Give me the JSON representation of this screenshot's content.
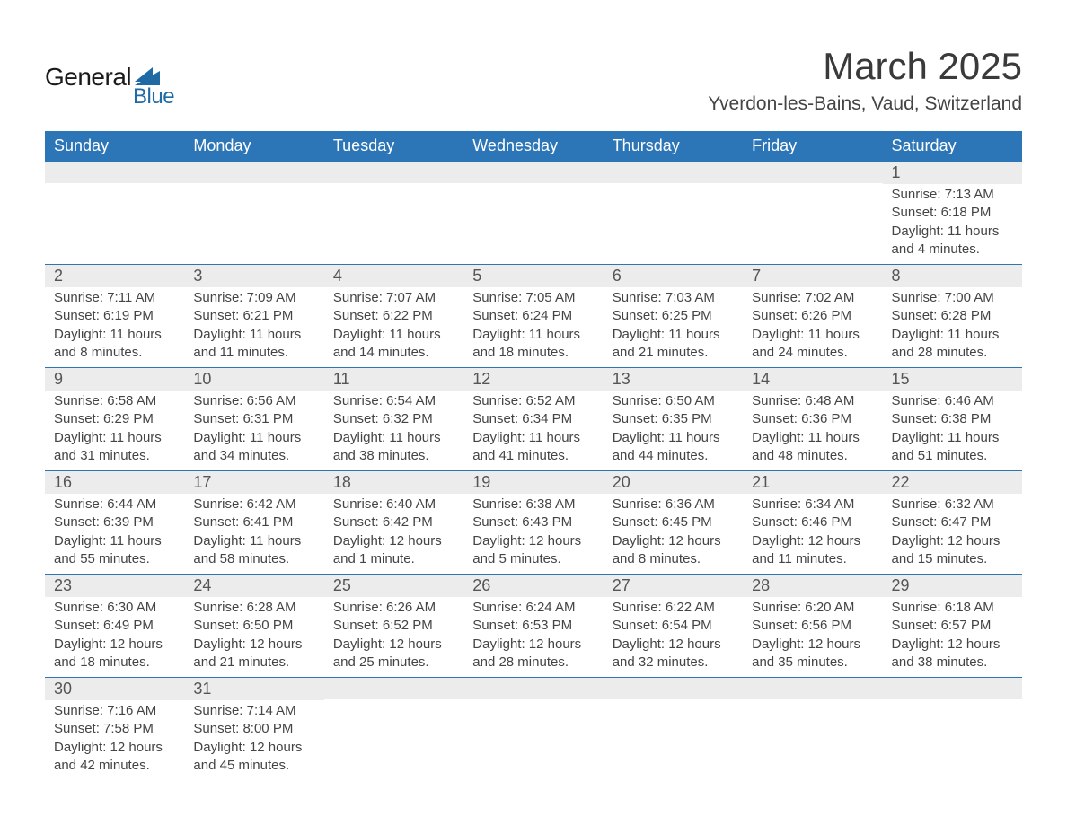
{
  "brand": {
    "name_main": "General",
    "name_sub": "Blue",
    "icon_color": "#1f6aa5"
  },
  "title": "March 2025",
  "location": "Yverdon-les-Bains, Vaud, Switzerland",
  "colors": {
    "header_bg": "#2c76b8",
    "header_text": "#ffffff",
    "daynum_bg": "#ececec",
    "body_text": "#444444",
    "row_border": "#2c76b8"
  },
  "typography": {
    "title_fontsize": 42,
    "location_fontsize": 21,
    "header_fontsize": 18,
    "daynum_fontsize": 18,
    "data_fontsize": 15
  },
  "days_of_week": [
    "Sunday",
    "Monday",
    "Tuesday",
    "Wednesday",
    "Thursday",
    "Friday",
    "Saturday"
  ],
  "weeks": [
    [
      null,
      null,
      null,
      null,
      null,
      null,
      {
        "num": "1",
        "sunrise": "Sunrise: 7:13 AM",
        "sunset": "Sunset: 6:18 PM",
        "daylight1": "Daylight: 11 hours",
        "daylight2": "and 4 minutes."
      }
    ],
    [
      {
        "num": "2",
        "sunrise": "Sunrise: 7:11 AM",
        "sunset": "Sunset: 6:19 PM",
        "daylight1": "Daylight: 11 hours",
        "daylight2": "and 8 minutes."
      },
      {
        "num": "3",
        "sunrise": "Sunrise: 7:09 AM",
        "sunset": "Sunset: 6:21 PM",
        "daylight1": "Daylight: 11 hours",
        "daylight2": "and 11 minutes."
      },
      {
        "num": "4",
        "sunrise": "Sunrise: 7:07 AM",
        "sunset": "Sunset: 6:22 PM",
        "daylight1": "Daylight: 11 hours",
        "daylight2": "and 14 minutes."
      },
      {
        "num": "5",
        "sunrise": "Sunrise: 7:05 AM",
        "sunset": "Sunset: 6:24 PM",
        "daylight1": "Daylight: 11 hours",
        "daylight2": "and 18 minutes."
      },
      {
        "num": "6",
        "sunrise": "Sunrise: 7:03 AM",
        "sunset": "Sunset: 6:25 PM",
        "daylight1": "Daylight: 11 hours",
        "daylight2": "and 21 minutes."
      },
      {
        "num": "7",
        "sunrise": "Sunrise: 7:02 AM",
        "sunset": "Sunset: 6:26 PM",
        "daylight1": "Daylight: 11 hours",
        "daylight2": "and 24 minutes."
      },
      {
        "num": "8",
        "sunrise": "Sunrise: 7:00 AM",
        "sunset": "Sunset: 6:28 PM",
        "daylight1": "Daylight: 11 hours",
        "daylight2": "and 28 minutes."
      }
    ],
    [
      {
        "num": "9",
        "sunrise": "Sunrise: 6:58 AM",
        "sunset": "Sunset: 6:29 PM",
        "daylight1": "Daylight: 11 hours",
        "daylight2": "and 31 minutes."
      },
      {
        "num": "10",
        "sunrise": "Sunrise: 6:56 AM",
        "sunset": "Sunset: 6:31 PM",
        "daylight1": "Daylight: 11 hours",
        "daylight2": "and 34 minutes."
      },
      {
        "num": "11",
        "sunrise": "Sunrise: 6:54 AM",
        "sunset": "Sunset: 6:32 PM",
        "daylight1": "Daylight: 11 hours",
        "daylight2": "and 38 minutes."
      },
      {
        "num": "12",
        "sunrise": "Sunrise: 6:52 AM",
        "sunset": "Sunset: 6:34 PM",
        "daylight1": "Daylight: 11 hours",
        "daylight2": "and 41 minutes."
      },
      {
        "num": "13",
        "sunrise": "Sunrise: 6:50 AM",
        "sunset": "Sunset: 6:35 PM",
        "daylight1": "Daylight: 11 hours",
        "daylight2": "and 44 minutes."
      },
      {
        "num": "14",
        "sunrise": "Sunrise: 6:48 AM",
        "sunset": "Sunset: 6:36 PM",
        "daylight1": "Daylight: 11 hours",
        "daylight2": "and 48 minutes."
      },
      {
        "num": "15",
        "sunrise": "Sunrise: 6:46 AM",
        "sunset": "Sunset: 6:38 PM",
        "daylight1": "Daylight: 11 hours",
        "daylight2": "and 51 minutes."
      }
    ],
    [
      {
        "num": "16",
        "sunrise": "Sunrise: 6:44 AM",
        "sunset": "Sunset: 6:39 PM",
        "daylight1": "Daylight: 11 hours",
        "daylight2": "and 55 minutes."
      },
      {
        "num": "17",
        "sunrise": "Sunrise: 6:42 AM",
        "sunset": "Sunset: 6:41 PM",
        "daylight1": "Daylight: 11 hours",
        "daylight2": "and 58 minutes."
      },
      {
        "num": "18",
        "sunrise": "Sunrise: 6:40 AM",
        "sunset": "Sunset: 6:42 PM",
        "daylight1": "Daylight: 12 hours",
        "daylight2": "and 1 minute."
      },
      {
        "num": "19",
        "sunrise": "Sunrise: 6:38 AM",
        "sunset": "Sunset: 6:43 PM",
        "daylight1": "Daylight: 12 hours",
        "daylight2": "and 5 minutes."
      },
      {
        "num": "20",
        "sunrise": "Sunrise: 6:36 AM",
        "sunset": "Sunset: 6:45 PM",
        "daylight1": "Daylight: 12 hours",
        "daylight2": "and 8 minutes."
      },
      {
        "num": "21",
        "sunrise": "Sunrise: 6:34 AM",
        "sunset": "Sunset: 6:46 PM",
        "daylight1": "Daylight: 12 hours",
        "daylight2": "and 11 minutes."
      },
      {
        "num": "22",
        "sunrise": "Sunrise: 6:32 AM",
        "sunset": "Sunset: 6:47 PM",
        "daylight1": "Daylight: 12 hours",
        "daylight2": "and 15 minutes."
      }
    ],
    [
      {
        "num": "23",
        "sunrise": "Sunrise: 6:30 AM",
        "sunset": "Sunset: 6:49 PM",
        "daylight1": "Daylight: 12 hours",
        "daylight2": "and 18 minutes."
      },
      {
        "num": "24",
        "sunrise": "Sunrise: 6:28 AM",
        "sunset": "Sunset: 6:50 PM",
        "daylight1": "Daylight: 12 hours",
        "daylight2": "and 21 minutes."
      },
      {
        "num": "25",
        "sunrise": "Sunrise: 6:26 AM",
        "sunset": "Sunset: 6:52 PM",
        "daylight1": "Daylight: 12 hours",
        "daylight2": "and 25 minutes."
      },
      {
        "num": "26",
        "sunrise": "Sunrise: 6:24 AM",
        "sunset": "Sunset: 6:53 PM",
        "daylight1": "Daylight: 12 hours",
        "daylight2": "and 28 minutes."
      },
      {
        "num": "27",
        "sunrise": "Sunrise: 6:22 AM",
        "sunset": "Sunset: 6:54 PM",
        "daylight1": "Daylight: 12 hours",
        "daylight2": "and 32 minutes."
      },
      {
        "num": "28",
        "sunrise": "Sunrise: 6:20 AM",
        "sunset": "Sunset: 6:56 PM",
        "daylight1": "Daylight: 12 hours",
        "daylight2": "and 35 minutes."
      },
      {
        "num": "29",
        "sunrise": "Sunrise: 6:18 AM",
        "sunset": "Sunset: 6:57 PM",
        "daylight1": "Daylight: 12 hours",
        "daylight2": "and 38 minutes."
      }
    ],
    [
      {
        "num": "30",
        "sunrise": "Sunrise: 7:16 AM",
        "sunset": "Sunset: 7:58 PM",
        "daylight1": "Daylight: 12 hours",
        "daylight2": "and 42 minutes."
      },
      {
        "num": "31",
        "sunrise": "Sunrise: 7:14 AM",
        "sunset": "Sunset: 8:00 PM",
        "daylight1": "Daylight: 12 hours",
        "daylight2": "and 45 minutes."
      },
      null,
      null,
      null,
      null,
      null
    ]
  ]
}
